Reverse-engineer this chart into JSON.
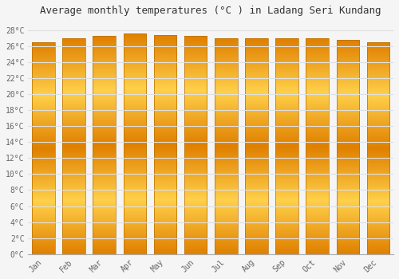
{
  "title": "Average monthly temperatures (°C ) in Ladang Seri Kundang",
  "months": [
    "Jan",
    "Feb",
    "Mar",
    "Apr",
    "May",
    "Jun",
    "Jul",
    "Aug",
    "Sep",
    "Oct",
    "Nov",
    "Dec"
  ],
  "temperatures": [
    26.5,
    27.0,
    27.3,
    27.6,
    27.4,
    27.3,
    27.0,
    27.0,
    27.0,
    27.0,
    26.8,
    26.5
  ],
  "bar_color_center": "#FFD04A",
  "bar_color_edge": "#E08000",
  "ylim": [
    0,
    29
  ],
  "ytick_step": 2,
  "background_color": "#f5f5f5",
  "plot_bg_color": "#f5f5f5",
  "grid_color": "#e0e0e0",
  "title_fontsize": 9,
  "tick_fontsize": 7,
  "font_family": "monospace"
}
